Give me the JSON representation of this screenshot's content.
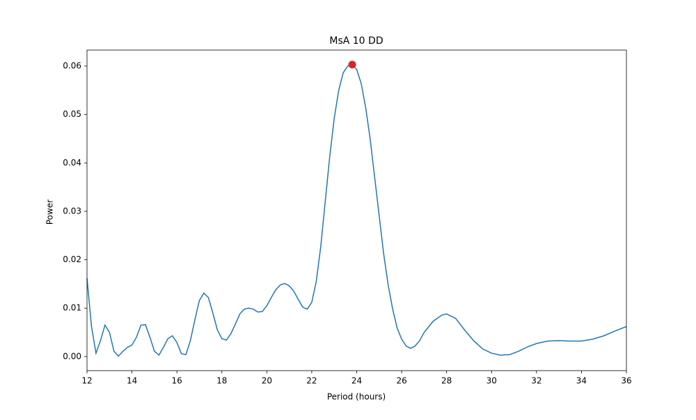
{
  "chart_data": {
    "type": "line",
    "title": "MsA 10 DD",
    "x_label": "Period (hours)",
    "y_label": "Power",
    "x": [
      12,
      12.2,
      12.4,
      12.6,
      12.8,
      13.0,
      13.2,
      13.4,
      13.6,
      13.8,
      14.0,
      14.2,
      14.4,
      14.6,
      14.8,
      15.0,
      15.2,
      15.4,
      15.6,
      15.8,
      16.0,
      16.2,
      16.4,
      16.6,
      16.8,
      17.0,
      17.2,
      17.4,
      17.6,
      17.8,
      18.0,
      18.2,
      18.4,
      18.6,
      18.8,
      19.0,
      19.2,
      19.4,
      19.6,
      19.8,
      20.0,
      20.2,
      20.4,
      20.6,
      20.8,
      21.0,
      21.2,
      21.4,
      21.6,
      21.8,
      22.0,
      22.2,
      22.4,
      22.6,
      22.8,
      23.0,
      23.2,
      23.4,
      23.6,
      23.8,
      24.0,
      24.2,
      24.4,
      24.6,
      24.8,
      25.0,
      25.2,
      25.4,
      25.6,
      25.8,
      26.0,
      26.2,
      26.4,
      26.6,
      26.8,
      27.0,
      27.4,
      27.8,
      28.0,
      28.4,
      28.8,
      29.2,
      29.6,
      30.0,
      30.4,
      30.8,
      31.2,
      31.6,
      32.0,
      32.5,
      33.0,
      33.5,
      34.0,
      34.5,
      35.0,
      35.5,
      36.0
    ],
    "series": [
      {
        "color": "#1f77b4",
        "values": [
          0.0162,
          0.0062,
          0.0007,
          0.0033,
          0.0065,
          0.005,
          0.0011,
          0.0001,
          0.0011,
          0.0019,
          0.0024,
          0.004,
          0.0065,
          0.0066,
          0.004,
          0.0011,
          0.0003,
          0.0019,
          0.0037,
          0.0043,
          0.0029,
          0.0006,
          0.0004,
          0.0033,
          0.0076,
          0.0116,
          0.0131,
          0.0122,
          0.009,
          0.0055,
          0.0037,
          0.0034,
          0.0047,
          0.0067,
          0.0088,
          0.0098,
          0.01,
          0.0098,
          0.0092,
          0.0093,
          0.0105,
          0.0122,
          0.0138,
          0.0148,
          0.0151,
          0.0146,
          0.0135,
          0.0118,
          0.0102,
          0.0098,
          0.0112,
          0.0155,
          0.0227,
          0.032,
          0.0413,
          0.0492,
          0.055,
          0.0586,
          0.06,
          0.0603,
          0.0593,
          0.0564,
          0.0514,
          0.0449,
          0.037,
          0.0291,
          0.0212,
          0.0148,
          0.0098,
          0.0059,
          0.0036,
          0.0022,
          0.0017,
          0.0022,
          0.0033,
          0.005,
          0.0073,
          0.0086,
          0.0088,
          0.0079,
          0.0055,
          0.0033,
          0.0016,
          0.0007,
          0.0003,
          0.0004,
          0.0011,
          0.002,
          0.0027,
          0.0032,
          0.0033,
          0.0032,
          0.0032,
          0.0036,
          0.0043,
          0.0053,
          0.0062
        ]
      }
    ],
    "peak": {
      "x": 23.8,
      "y": 0.0603,
      "color": "#d62728"
    },
    "xlim": [
      12,
      36
    ],
    "ylim": [
      -0.0029,
      0.0633
    ],
    "xticks": [
      12,
      14,
      16,
      18,
      20,
      22,
      24,
      26,
      28,
      30,
      32,
      34,
      36
    ],
    "yticks": [
      {
        "value": 0,
        "label": "0.00"
      },
      {
        "value": 0.01,
        "label": "0.01"
      },
      {
        "value": 0.02,
        "label": "0.02"
      },
      {
        "value": 0.03,
        "label": "0.03"
      },
      {
        "value": 0.04,
        "label": "0.04"
      },
      {
        "value": 0.05,
        "label": "0.05"
      },
      {
        "value": 0.06,
        "label": "0.06"
      }
    ],
    "grid": false
  }
}
